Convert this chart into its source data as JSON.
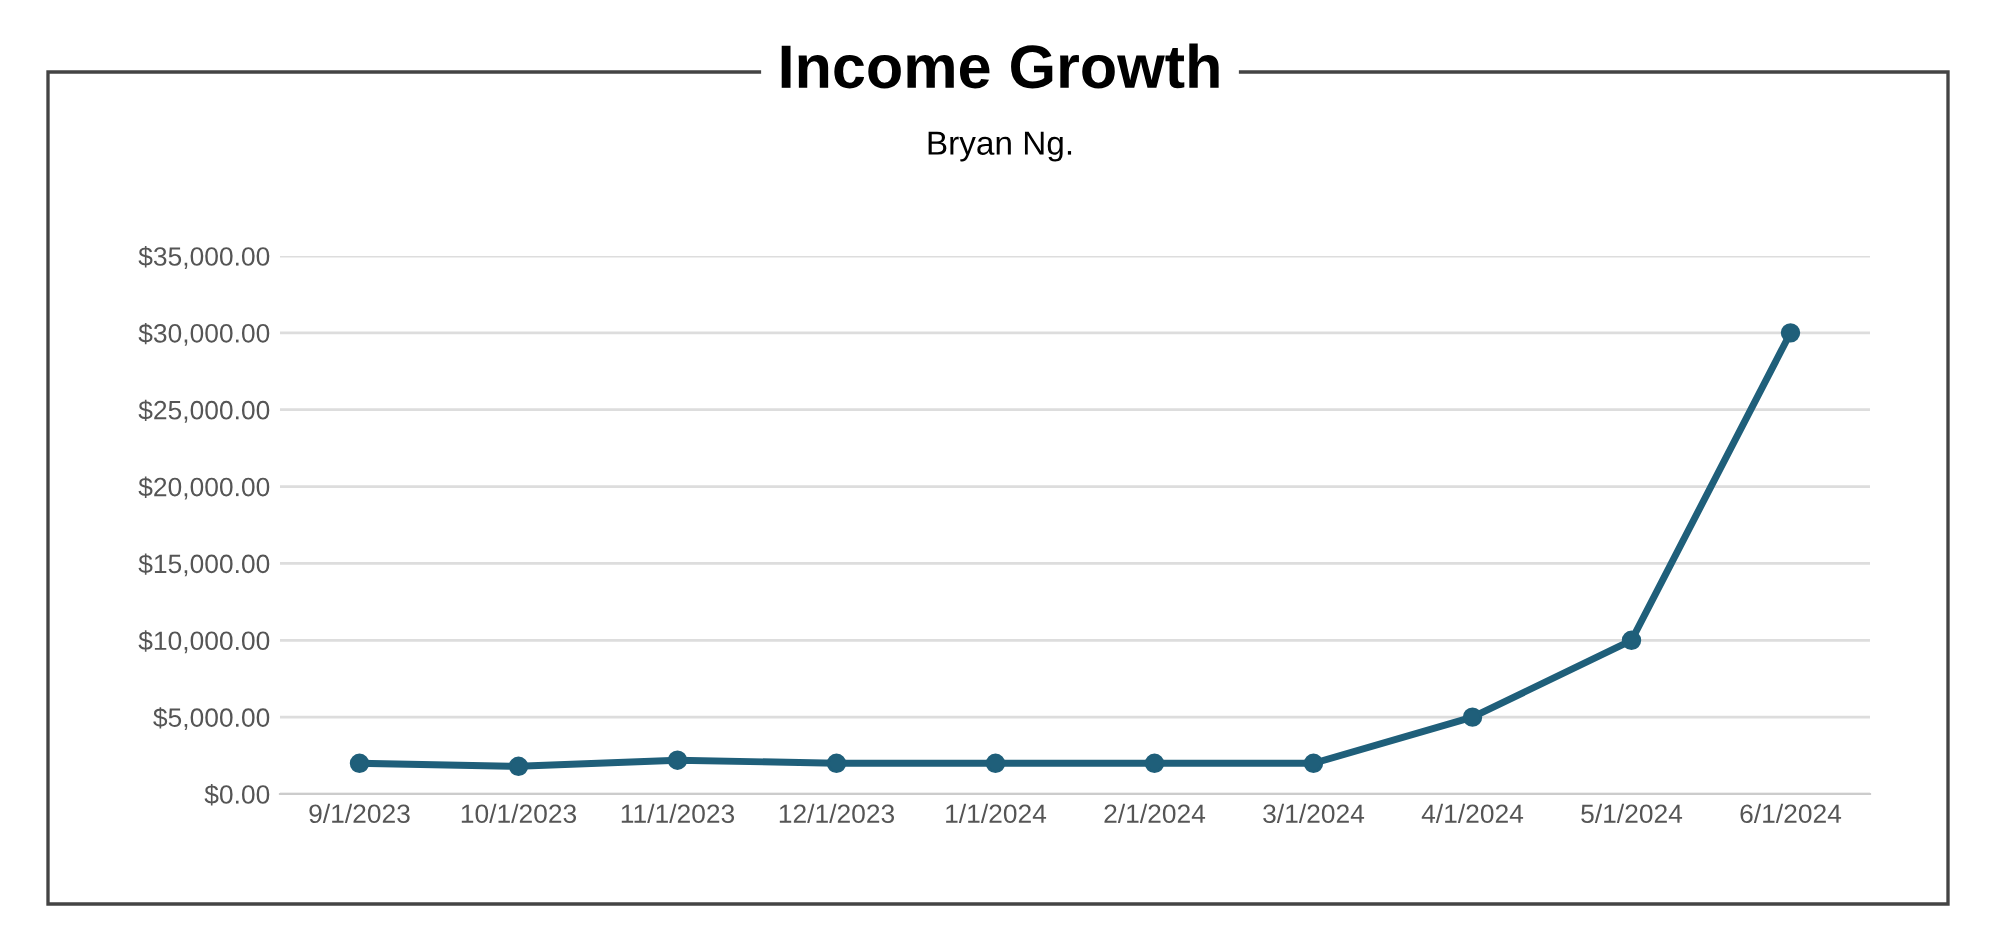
{
  "chart_data": {
    "type": "line",
    "title": "Income Growth",
    "subtitle": "Bryan Ng.",
    "categories": [
      "9/1/2023",
      "10/1/2023",
      "11/1/2023",
      "12/1/2023",
      "1/1/2024",
      "2/1/2024",
      "3/1/2024",
      "4/1/2024",
      "5/1/2024",
      "6/1/2024"
    ],
    "series": [
      {
        "color": "#1f5f7a",
        "values": [
          2000,
          1800,
          2200,
          2000,
          2000,
          2000,
          2000,
          5000,
          10000,
          30000
        ]
      }
    ],
    "ylim": [
      0,
      35000
    ],
    "yticks": [
      {
        "value": 0,
        "label": "$0.00"
      },
      {
        "value": 5000,
        "label": "$5,000.00"
      },
      {
        "value": 10000,
        "label": "$10,000.00"
      },
      {
        "value": 15000,
        "label": "$15,000.00"
      },
      {
        "value": 20000,
        "label": "$20,000.00"
      },
      {
        "value": 25000,
        "label": "$25,000.00"
      },
      {
        "value": 30000,
        "label": "$30,000.00"
      },
      {
        "value": 35000,
        "label": "$35,000.00"
      }
    ],
    "grid": "y",
    "marker": "circle",
    "line_style": "solid"
  }
}
